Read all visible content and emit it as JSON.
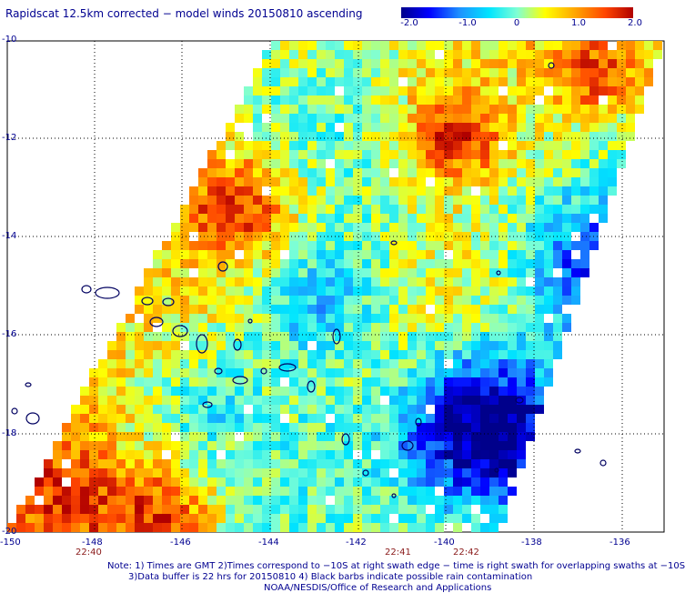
{
  "title": "Rapidscat 12.5km corrected − model winds 20150810 ascending",
  "colorbar": {
    "ticks": [
      "-2.0",
      "-1.0",
      "0",
      "1.0",
      "2.0"
    ],
    "tick_values": [
      -2.0,
      -1.0,
      0,
      1.0,
      2.0
    ],
    "colors": [
      "#00008b",
      "#0000ff",
      "#1e90ff",
      "#00e5ff",
      "#7fffd4",
      "#ffff00",
      "#ffa500",
      "#ff4500",
      "#b00000"
    ]
  },
  "lat_labels": [
    "-10",
    "-12",
    "-14",
    "-16",
    "-18",
    "-20"
  ],
  "lon_labels": [
    "-150",
    "-148",
    "-146",
    "-144",
    "-142",
    "-140",
    "-138",
    "-136"
  ],
  "time_labels": [
    "22:40",
    "22:41",
    "22:42"
  ],
  "notes": [
    "Note: 1) Times are GMT 2)Times correspond to −10S at right swath edge − time is right swath for overlapping swaths at −10S",
    "3)Data buffer is 22 hrs for 20150810 4) Black barbs indicate possible rain contamination",
    "NOAA/NESDIS/Office of Research and Applications"
  ],
  "chart_data": {
    "type": "heatmap",
    "title": "Rapidscat 12.5km corrected − model winds 20150810 ascending",
    "x_range": [
      -150,
      -135
    ],
    "y_range": [
      -20,
      -10
    ],
    "value_range": [
      -2.0,
      2.0
    ]
  }
}
